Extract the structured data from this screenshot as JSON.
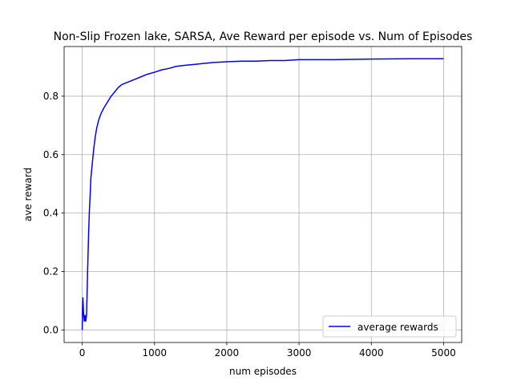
{
  "chart_data": {
    "type": "line",
    "title": "Non-Slip Frozen lake, SARSA, Ave Reward per episode vs. Num of Episodes",
    "xlabel": "num episodes",
    "ylabel": "ave reward",
    "xlim": [
      -250,
      5250
    ],
    "ylim": [
      -0.043,
      0.97
    ],
    "xticks": [
      0,
      1000,
      2000,
      3000,
      4000,
      5000
    ],
    "xtick_labels": [
      "0",
      "1000",
      "2000",
      "3000",
      "4000",
      "5000"
    ],
    "yticks": [
      0.0,
      0.2,
      0.4,
      0.6,
      0.8
    ],
    "ytick_labels": [
      "0.0",
      "0.2",
      "0.4",
      "0.6",
      "0.8"
    ],
    "grid": true,
    "legend_position": "lower-right",
    "series": [
      {
        "name": "average rewards",
        "color": "#0000ff",
        "x": [
          0,
          5,
          10,
          20,
          30,
          40,
          50,
          60,
          70,
          80,
          90,
          100,
          110,
          120,
          140,
          160,
          180,
          200,
          230,
          260,
          300,
          350,
          400,
          450,
          500,
          550,
          600,
          700,
          800,
          900,
          1000,
          1100,
          1200,
          1300,
          1400,
          1600,
          1800,
          2000,
          2200,
          2400,
          2600,
          2800,
          3000,
          3200,
          3500,
          4000,
          4500,
          5000
        ],
        "y": [
          0.0,
          0.08,
          0.11,
          0.05,
          0.03,
          0.05,
          0.03,
          0.05,
          0.15,
          0.25,
          0.34,
          0.41,
          0.46,
          0.52,
          0.57,
          0.62,
          0.66,
          0.69,
          0.72,
          0.74,
          0.76,
          0.78,
          0.8,
          0.815,
          0.83,
          0.84,
          0.845,
          0.855,
          0.865,
          0.875,
          0.882,
          0.89,
          0.895,
          0.902,
          0.905,
          0.91,
          0.915,
          0.918,
          0.92,
          0.92,
          0.922,
          0.922,
          0.925,
          0.925,
          0.925,
          0.927,
          0.928,
          0.928
        ]
      }
    ]
  }
}
